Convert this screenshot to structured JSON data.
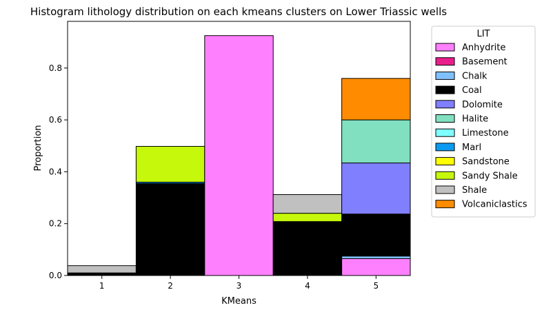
{
  "chart_data": {
    "type": "bar",
    "stacked": true,
    "title": "Histogram lithology distribution on each kmeans clusters on Lower Triassic wells",
    "xlabel": "KMeans",
    "ylabel": "Proportion",
    "categories": [
      "1",
      "2",
      "3",
      "4",
      "5"
    ],
    "xlim": [
      0.5,
      5.5
    ],
    "ylim": [
      0,
      0.98
    ],
    "yticks": [
      0.0,
      0.2,
      0.4,
      0.6,
      0.8
    ],
    "yticklabels": [
      "0.0",
      "0.2",
      "0.4",
      "0.6",
      "0.8"
    ],
    "legend": {
      "title": "LIT",
      "position": "outside-right"
    },
    "series": [
      {
        "name": "Anhydrite",
        "color": "#ff80ff",
        "values": [
          0.0,
          0.0,
          0.925,
          0.0,
          0.065
        ]
      },
      {
        "name": "Basement",
        "color": "#e91e8c",
        "values": [
          0.0,
          0.0,
          0.0,
          0.0,
          0.0
        ]
      },
      {
        "name": "Chalk",
        "color": "#80c0ff",
        "values": [
          0.0,
          0.0,
          0.0,
          0.0,
          0.01
        ]
      },
      {
        "name": "Coal",
        "color": "#000000",
        "values": [
          0.01,
          0.355,
          0.0,
          0.208,
          0.162
        ]
      },
      {
        "name": "Dolomite",
        "color": "#8080ff",
        "values": [
          0.0,
          0.0,
          0.0,
          0.0,
          0.197
        ]
      },
      {
        "name": "Halite",
        "color": "#80e0c0",
        "values": [
          0.0,
          0.0,
          0.0,
          0.0,
          0.166
        ]
      },
      {
        "name": "Limestone",
        "color": "#80ffff",
        "values": [
          0.0,
          0.0,
          0.0,
          0.0,
          0.0
        ]
      },
      {
        "name": "Marl",
        "color": "#0a9bf0",
        "values": [
          0.0,
          0.005,
          0.0,
          0.0,
          0.0
        ]
      },
      {
        "name": "Sandstone",
        "color": "#ffff00",
        "values": [
          0.0,
          0.0,
          0.0,
          0.0,
          0.0
        ]
      },
      {
        "name": "Sandy Shale",
        "color": "#c5f80a",
        "values": [
          0.0,
          0.138,
          0.0,
          0.032,
          0.0
        ]
      },
      {
        "name": "Shale",
        "color": "#c0c0c0",
        "values": [
          0.028,
          0.0,
          0.0,
          0.072,
          0.0
        ]
      },
      {
        "name": "Volcaniclastics",
        "color": "#ff8c00",
        "values": [
          0.0,
          0.0,
          0.0,
          0.0,
          0.16
        ]
      }
    ]
  }
}
